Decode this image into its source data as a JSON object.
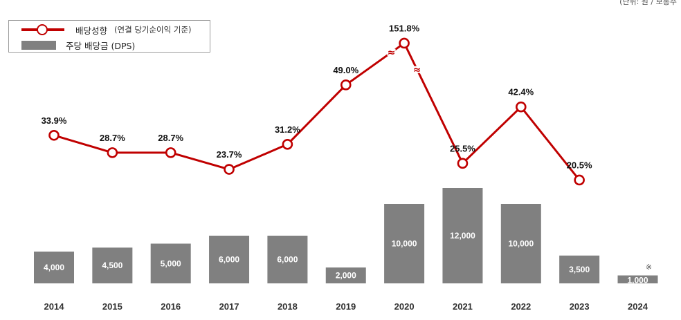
{
  "unit_note": "(단위: 원 / 보통주",
  "legend": {
    "line_label": "배당성향",
    "line_sublabel": "(연결 당기순이익 기준)",
    "bar_label": "주당 배당금 (DPS)"
  },
  "footnote_mark": "※",
  "break_mark": "≈",
  "colors": {
    "line": "#c00000",
    "bar": "#808080",
    "text": "#222222"
  },
  "chart_data": {
    "type": "bar+line",
    "categories": [
      "2014",
      "2015",
      "2016",
      "2017",
      "2018",
      "2019",
      "2020",
      "2021",
      "2022",
      "2023",
      "2024"
    ],
    "series": [
      {
        "name": "주당 배당금 (DPS)",
        "type": "bar",
        "values": [
          4000,
          4500,
          5000,
          6000,
          6000,
          2000,
          10000,
          12000,
          10000,
          3500,
          1000
        ],
        "labels": [
          "4,000",
          "4,500",
          "5,000",
          "6,000",
          "6,000",
          "2,000",
          "10,000",
          "12,000",
          "10,000",
          "3,500",
          "1,000"
        ],
        "ylim": [
          0,
          12000
        ]
      },
      {
        "name": "배당성향",
        "type": "line",
        "values": [
          33.9,
          28.7,
          28.7,
          23.7,
          31.2,
          49.0,
          151.8,
          25.5,
          42.4,
          20.5,
          null
        ],
        "labels": [
          "33.9%",
          "28.7%",
          "28.7%",
          "23.7%",
          "31.2%",
          "49.0%",
          "151.8%",
          "25.5%",
          "42.4%",
          "20.5%",
          ""
        ],
        "axis_break": {
          "category": "2020",
          "display_as": 61.5
        }
      }
    ],
    "title": "",
    "xlabel": "",
    "ylabel": ""
  }
}
